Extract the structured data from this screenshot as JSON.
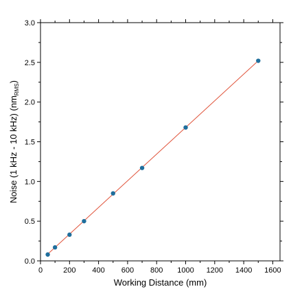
{
  "chart_data": {
    "type": "scatter",
    "title": "",
    "xlabel": "Working Distance (mm)",
    "ylabel": {
      "prefix": "Noise (1 kHz - 10 kHz) (nm",
      "subscript": "RMS",
      "suffix": ")"
    },
    "xlim": [
      0,
      1650
    ],
    "ylim": [
      0,
      3.0
    ],
    "x_ticks": [
      0,
      200,
      400,
      600,
      800,
      1000,
      1200,
      1400,
      1600
    ],
    "y_ticks": [
      0.0,
      0.5,
      1.0,
      1.5,
      2.0,
      2.5,
      3.0
    ],
    "y_tick_labels": [
      "0.0",
      "0.5",
      "1.0",
      "1.5",
      "2.0",
      "2.5",
      "3.0"
    ],
    "grid": false,
    "series": [
      {
        "marker_color": "#1f6e9c",
        "points": [
          {
            "x": 50,
            "y": 0.08
          },
          {
            "x": 100,
            "y": 0.17
          },
          {
            "x": 200,
            "y": 0.33
          },
          {
            "x": 300,
            "y": 0.5
          },
          {
            "x": 500,
            "y": 0.85
          },
          {
            "x": 700,
            "y": 1.17
          },
          {
            "x": 1000,
            "y": 1.68
          },
          {
            "x": 1500,
            "y": 2.52
          }
        ]
      }
    ],
    "fit_line": {
      "color": "#e0533a",
      "x": [
        50,
        1500
      ],
      "y": [
        0.085,
        2.52
      ]
    }
  }
}
